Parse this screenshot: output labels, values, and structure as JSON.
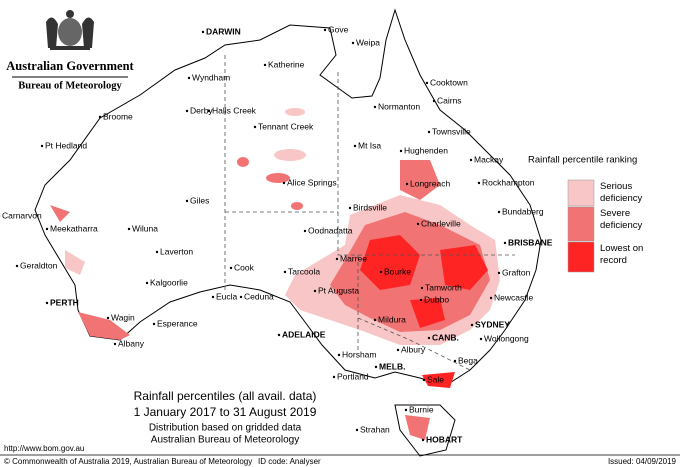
{
  "header": {
    "government": "Australian Government",
    "agency": "Bureau of Meteorology"
  },
  "legend": {
    "title": "Rainfall percentile ranking",
    "items": [
      {
        "label": "Serious deficiency",
        "color": "#f8c6c6"
      },
      {
        "label": "Severe deficiency",
        "color": "#f17373"
      },
      {
        "label": "Lowest on record",
        "color": "#ff2424"
      }
    ]
  },
  "places": [
    "DARWIN",
    "Gove",
    "Weipa",
    "Katherine",
    "Wyndham",
    "Cooktown",
    "Cairns",
    "Broome",
    "Derby",
    "Halls Creek",
    "Normanton",
    "Tennant Creek",
    "Townsville",
    "Mt Isa",
    "Pt Hedland",
    "Hughenden",
    "Mackay",
    "Alice Springs",
    "Longreach",
    "Rockhampton",
    "Giles",
    "Birdsville",
    "Bundaberg",
    "Carnarvon",
    "Meekatharra",
    "Wiluna",
    "Charleville",
    "Oodnadatta",
    "BRISBANE",
    "Laverton",
    "Marree",
    "Bourke",
    "Grafton",
    "Geraldton",
    "Cook",
    "Tarcoola",
    "Kalgoorlie",
    "Tamworth",
    "Pt Augusta",
    "Eucla",
    "Ceduna",
    "Dubbo",
    "Newcastle",
    "PERTH",
    "Wagin",
    "Esperance",
    "Mildura",
    "SYDNEY",
    "ADELAIDE",
    "Wollongong",
    "CANB.",
    "Albany",
    "Horsham",
    "Albury",
    "Bega",
    "Portland",
    "MELB.",
    "Sale",
    "Burnie",
    "Strahan",
    "HOBART"
  ],
  "caption": [
    "Rainfall percentiles (all avail. data)",
    "1 January 2017 to 31 August 2019",
    "Distribution based on gridded data",
    "Australian Bureau of Meteorology"
  ],
  "footer": {
    "url": "http://www.bom.gov.au",
    "copyright": "© Commonwealth of Australia 2019, Australian Bureau of Meteorology",
    "id_code": "ID code: Analyser",
    "issued": "Issued: 04/09/2019"
  }
}
